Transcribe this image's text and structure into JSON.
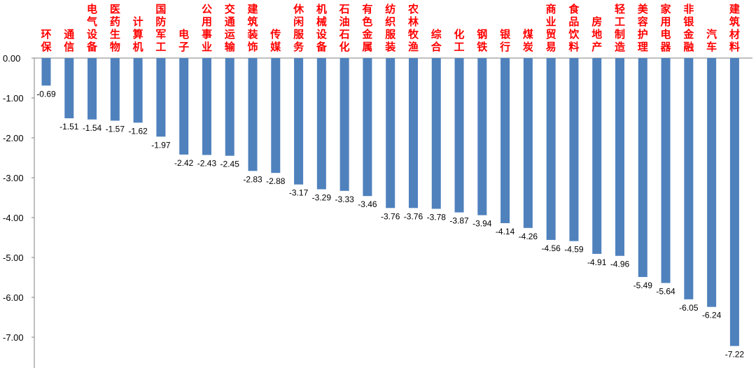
{
  "chart_data": {
    "type": "bar",
    "categories": [
      "环保",
      "通信",
      "电气设备",
      "医药生物",
      "计算机",
      "国防军工",
      "电子",
      "公用事业",
      "交通运输",
      "建筑装饰",
      "传媒",
      "休闲服务",
      "机械设备",
      "石油石化",
      "有色金属",
      "纺织服装",
      "农林牧渔",
      "综合",
      "化工",
      "钢铁",
      "银行",
      "煤炭",
      "商业贸易",
      "食品饮料",
      "房地产",
      "轻工制造",
      "美容护理",
      "家用电器",
      "非银金融",
      "汽车",
      "建筑材料"
    ],
    "values": [
      -0.69,
      -1.51,
      -1.54,
      -1.57,
      -1.62,
      -1.97,
      -2.42,
      -2.43,
      -2.45,
      -2.83,
      -2.88,
      -3.17,
      -3.29,
      -3.33,
      -3.46,
      -3.76,
      -3.76,
      -3.78,
      -3.87,
      -3.94,
      -4.14,
      -4.26,
      -4.56,
      -4.59,
      -4.91,
      -4.96,
      -5.49,
      -5.64,
      -6.05,
      -6.24,
      -7.22
    ],
    "value_labels": [
      "-0.69",
      "-1.51",
      "-1.54",
      "-1.57",
      "-1.62",
      "-1.97",
      "-2.42",
      "-2.43",
      "-2.45",
      "-2.83",
      "-2.88",
      "-3.17",
      "-3.29",
      "-3.33",
      "-3.46",
      "-3.76",
      "-3.76",
      "-3.78",
      "-3.87",
      "-3.94",
      "-4.14",
      "-4.26",
      "-4.56",
      "-4.59",
      "-4.91",
      "-4.96",
      "-5.49",
      "-5.64",
      "-6.05",
      "-6.24",
      "-7.22"
    ],
    "y_ticks": [
      0,
      -1,
      -2,
      -3,
      -4,
      -5,
      -6,
      -7
    ],
    "y_tick_labels": [
      "0.00",
      "-1.00",
      "-2.00",
      "-3.00",
      "-4.00",
      "-5.00",
      "-6.00",
      "-7.00"
    ],
    "ylim": [
      -7.4,
      0
    ],
    "grid": false,
    "legend": "none",
    "colors": {
      "bar": "#4f81bd",
      "category_text": "#ff0000",
      "axis": "#808080"
    }
  }
}
